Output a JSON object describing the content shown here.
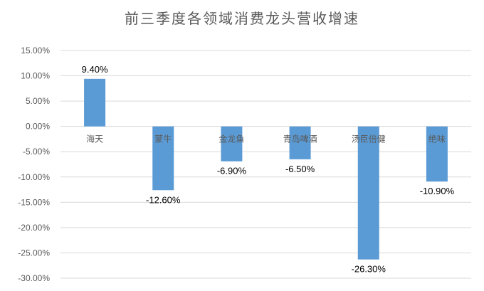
{
  "title": "前三季度各领域消费龙头营收增速",
  "chart_data": {
    "type": "bar",
    "title": "前三季度各领域消费龙头营收增速",
    "categories": [
      "海天",
      "蒙牛",
      "金龙鱼",
      "青岛啤酒",
      "汤臣倍健",
      "绝味"
    ],
    "values": [
      9.4,
      -12.6,
      -6.9,
      -6.5,
      -26.3,
      -10.9
    ],
    "data_labels": [
      "9.40%",
      "-12.60%",
      "-6.90%",
      "-6.50%",
      "-26.30%",
      "-10.90%"
    ],
    "y_ticks": [
      "15.00%",
      "10.00%",
      "5.00%",
      "0.00%",
      "-5.00%",
      "-10.00%",
      "-15.00%",
      "-20.00%",
      "-25.00%",
      "-30.00%"
    ],
    "ylim": [
      -30,
      15
    ],
    "xlabel": "",
    "ylabel": "",
    "grid": true,
    "legend": "none",
    "bar_color": "#5B9BD5",
    "grid_color": "#D9D9D9"
  }
}
